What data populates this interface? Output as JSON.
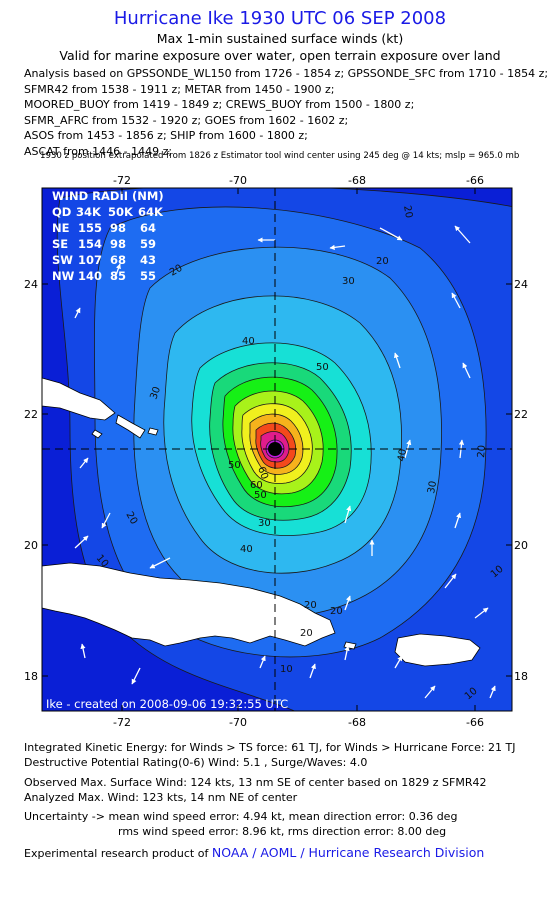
{
  "header": {
    "title": "Hurricane Ike 1930 UTC 06 SEP 2008",
    "subtitle1": "Max 1-min sustained surface winds (kt)",
    "subtitle2": "Valid for marine exposure over water, open terrain exposure over land"
  },
  "analysis_lines": [
    "Analysis based on  GPSSONDE_WL150 from 1726 - 1854 z;  GPSSONDE_SFC from 1710 - 1854 z;",
    "SFMR42 from 1538 - 1911 z;  METAR from 1450 - 1900 z;",
    "MOORED_BUOY from 1419 - 1849 z;  CREWS_BUOY from 1500 - 1800 z;",
    "SFMR_AFRC from 1532 - 1920 z;  GOES from 1602 - 1602 z;",
    "ASOS from 1453 - 1856 z;  SHIP from 1600 - 1800 z;",
    "ASCAT from 1446 - 1449 z;"
  ],
  "extrapolation_note": "1930 z position extrapolated from 1826 z Estimator tool wind center using 245 deg @ 14 kts; mslp = 965.0 mb",
  "map": {
    "lon_ticks_top": [
      "-72",
      "-70",
      "-68",
      "-66"
    ],
    "lon_ticks_bottom": [
      "-72",
      "-70",
      "-68",
      "-66"
    ],
    "lat_ticks_left": [
      "24",
      "22",
      "20",
      "18"
    ],
    "lat_ticks_right": [
      "24",
      "22",
      "20",
      "18"
    ],
    "contour_labels": [
      "20",
      "30",
      "40",
      "50",
      "60",
      "40",
      "30",
      "20",
      "30",
      "40",
      "30",
      "20",
      "20",
      "10",
      "20",
      "10",
      "20",
      "10",
      "20",
      "10",
      "20",
      "50",
      "60",
      "50"
    ],
    "center_marker": "storm-center",
    "colors": {
      "ocean_dark": "#0a1fd6",
      "ocean_mid": "#1e6cf2",
      "wind_30": "#2eb8f0",
      "wind_40": "#17e0d6",
      "wind_50": "#19d97a",
      "wind_60": "#16f016",
      "wind_70": "#a8f21a",
      "wind_80": "#f0f01e",
      "wind_90": "#f6b21c",
      "wind_100": "#f4491c",
      "wind_110": "#e01c8c",
      "wind_120": "#c419e0",
      "land": "#ffffff"
    }
  },
  "wind_radii": {
    "title": "WIND RADII (NM)",
    "header": [
      "QD",
      "34K",
      "50K",
      "64K"
    ],
    "rows": [
      [
        "NE",
        "155",
        "98",
        "64"
      ],
      [
        "SE",
        "154",
        "98",
        "59"
      ],
      [
        "SW",
        "107",
        "68",
        "43"
      ],
      [
        "NW",
        "140",
        "85",
        "55"
      ]
    ]
  },
  "created_label": "Ike - created on 2008-09-06 19:32:55 UTC",
  "footer": {
    "ike_line": "Integrated Kinetic Energy:  for Winds > TS force: 61 TJ,  for Winds > Hurricane Force: 21 TJ",
    "dpr_line": "Destructive Potential Rating(0-6)  Wind: 5.1 , Surge/Waves: 4.0",
    "observed_max": "Observed Max. Surface Wind: 124 kts, 13 nm SE of center based on 1829 z SFMR42",
    "analyzed_max": "Analyzed Max. Wind: 123 kts, 14 nm NE of center",
    "uncertainty1": "Uncertainty -> mean wind speed error: 4.94 kt,   mean direction error: 0.36 deg",
    "uncertainty2": "rms wind speed error: 8.96 kt,   rms direction error: 8.00 deg",
    "credit_prefix": "Experimental research product of",
    "credit_org": "NOAA / AOML / Hurricane Research Division"
  }
}
